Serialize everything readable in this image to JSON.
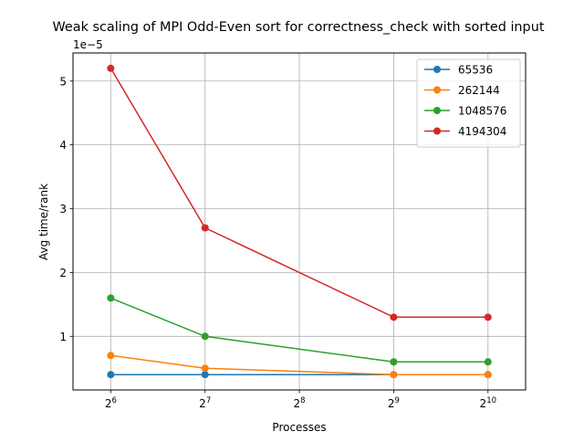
{
  "chart_data": {
    "type": "line",
    "title": "Weak scaling of MPI Odd-Even sort for correctness_check with sorted input",
    "xlabel": "Processes",
    "ylabel": "Avg time/rank",
    "y_offset_label": "1e−5",
    "x_scale": "log2",
    "x": [
      64,
      128,
      256,
      512,
      1024
    ],
    "x_tick_labels": [
      {
        "base": "2",
        "exp": "6"
      },
      {
        "base": "2",
        "exp": "7"
      },
      {
        "base": "2",
        "exp": "8"
      },
      {
        "base": "2",
        "exp": "9"
      },
      {
        "base": "2",
        "exp": "10"
      }
    ],
    "y_ticks": [
      1,
      2,
      3,
      4,
      5
    ],
    "y_tick_labels": [
      "1",
      "2",
      "3",
      "4",
      "5"
    ],
    "xlim": [
      48.5,
      1350
    ],
    "ylim": [
      0.16,
      5.44
    ],
    "grid": true,
    "legend_position": "top-right",
    "series": [
      {
        "name": "65536",
        "color": "#1f77b4",
        "points": [
          [
            64,
            0.4
          ],
          [
            128,
            0.4
          ],
          [
            512,
            0.4
          ],
          [
            1024,
            0.4
          ]
        ]
      },
      {
        "name": "262144",
        "color": "#ff7f0e",
        "points": [
          [
            64,
            0.7
          ],
          [
            128,
            0.5
          ],
          [
            512,
            0.4
          ],
          [
            1024,
            0.4
          ]
        ]
      },
      {
        "name": "1048576",
        "color": "#2ca02c",
        "points": [
          [
            64,
            1.6
          ],
          [
            128,
            1.0
          ],
          [
            512,
            0.6
          ],
          [
            1024,
            0.6
          ]
        ]
      },
      {
        "name": "4194304",
        "color": "#d62728",
        "points": [
          [
            64,
            5.2
          ],
          [
            128,
            2.7
          ],
          [
            512,
            1.3
          ],
          [
            1024,
            1.3
          ]
        ]
      }
    ]
  }
}
